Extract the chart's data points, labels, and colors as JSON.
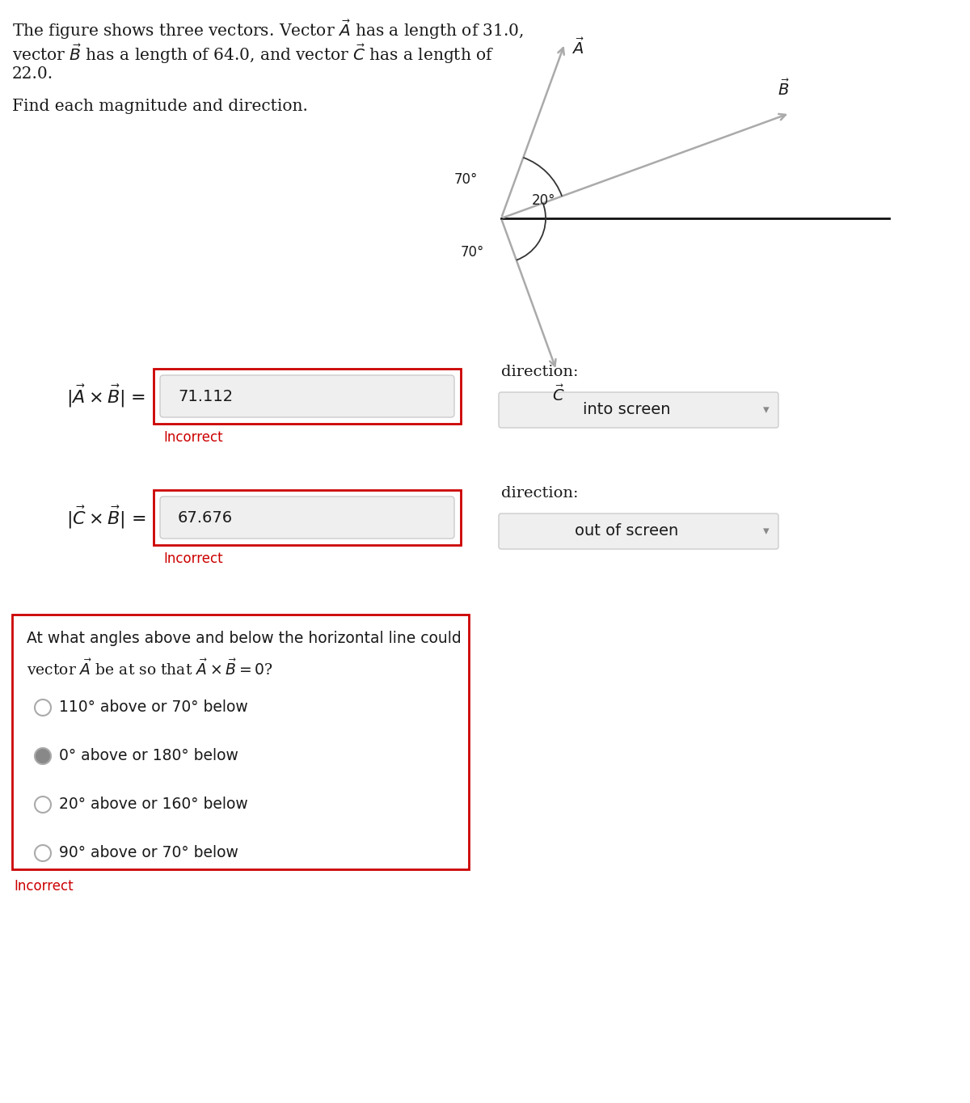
{
  "bg_color": "#ffffff",
  "fig_width": 12.0,
  "fig_height": 13.64,
  "intro_text_line1": "The figure shows three vectors. Vector $\\vec{A}$ has a length of 31.0,",
  "intro_text_line2": "vector $\\vec{B}$ has a length of 64.0, and vector $\\vec{C}$ has a length of",
  "intro_text_line3": "22.0.",
  "find_text": "Find each magnitude and direction.",
  "vec_A_label": "$\\vec{A}$",
  "vec_B_label": "$\\vec{B}$",
  "vec_C_label": "$\\vec{C}$",
  "eq1_label": "$|\\vec{A} \\times \\vec{B}|$ =",
  "eq1_value": "71.112",
  "eq1_incorrect": "Incorrect",
  "eq1_direction_label": "direction:",
  "eq1_direction_value": "into screen",
  "eq2_label": "$|\\vec{C} \\times \\vec{B}|$ =",
  "eq2_value": "67.676",
  "eq2_incorrect": "Incorrect",
  "eq2_direction_label": "direction:",
  "eq2_direction_value": "out of screen",
  "mc_question_line1": "At what angles above and below the horizontal line could",
  "mc_question_line2": "vector $\\vec{A}$ be at so that $\\vec{A} \\times \\vec{B} = 0$?",
  "mc_options": [
    "110° above or 70° below",
    "0° above or 180° below",
    "20° above or 160° below",
    "90° above or 70° below"
  ],
  "mc_selected": 1,
  "mc_incorrect": "Incorrect",
  "red_border": "#cc0000",
  "gray_fill": "#efefef",
  "gray_border": "#cccccc",
  "text_color": "#1a1a1a",
  "incorrect_color": "#cc0000",
  "vector_color": "#aaaaaa",
  "horizontal_color": "#111111"
}
